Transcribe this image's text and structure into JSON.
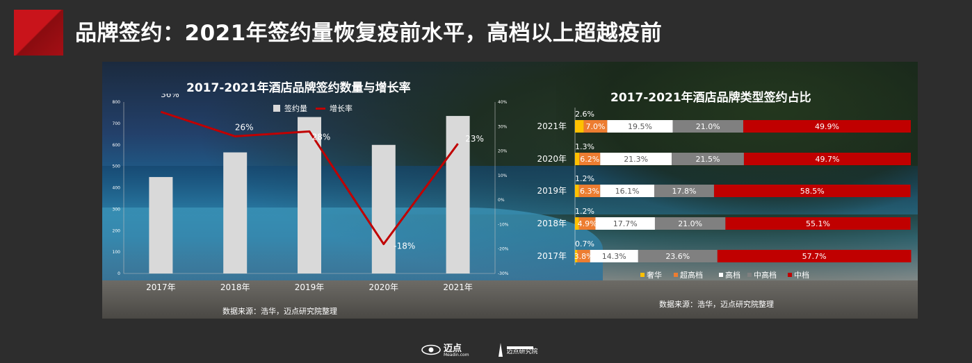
{
  "header": {
    "title": "品牌签约：2021年签约量恢复疫前水平，高档以上超越疫前"
  },
  "colors": {
    "accent_red": "#c9141b",
    "bar_gray": "#d9d9d9",
    "line_red": "#c00000",
    "luxury": "#ffc000",
    "upper_upscale": "#ed7d31",
    "upscale": "#ffffff",
    "upper_midscale": "#808080",
    "midscale": "#c00000"
  },
  "chart_data": [
    {
      "type": "bar",
      "title": "2017-2021年酒店品牌签约数量与增长率",
      "categories": [
        "2017年",
        "2018年",
        "2019年",
        "2020年",
        "2021年"
      ],
      "series": [
        {
          "name": "签约量",
          "type": "bar",
          "axis": "left",
          "values": [
            450,
            565,
            730,
            600,
            735
          ]
        },
        {
          "name": "增长率",
          "type": "line",
          "axis": "right",
          "values": [
            36,
            26,
            28,
            -18,
            23
          ]
        }
      ],
      "data_labels": [
        "36%",
        "26%",
        "28%",
        "-18%",
        "23%"
      ],
      "left_axis": {
        "ylim": [
          0,
          800
        ],
        "ticks": [
          "0",
          "100",
          "200",
          "300",
          "400",
          "500",
          "600",
          "700",
          "800"
        ]
      },
      "right_axis": {
        "ylim": [
          -30,
          40
        ],
        "ticks": [
          "-30%",
          "-20%",
          "-10%",
          "0%",
          "10%",
          "20%",
          "30%",
          "40%"
        ]
      },
      "legend": [
        "签约量",
        "增长率"
      ],
      "legend_position": "top",
      "source": "数据来源：浩华，迈点研究院整理"
    },
    {
      "type": "bar",
      "orientation": "horizontal-stacked-100",
      "title": "2017-2021年酒店品牌类型签约占比",
      "categories": [
        "2021年",
        "2020年",
        "2019年",
        "2018年",
        "2017年"
      ],
      "series": [
        {
          "name": "奢华",
          "values": [
            2.6,
            1.3,
            1.2,
            1.2,
            0.7
          ],
          "labels": [
            "2.6%",
            "1.3%",
            "1.2%",
            "1.2%",
            "0.7%"
          ]
        },
        {
          "name": "超高档",
          "values": [
            7.0,
            6.2,
            6.3,
            4.9,
            3.8
          ],
          "labels": [
            "7.0%",
            "6.2%",
            "6.3%",
            "4.9%",
            "3.8%"
          ]
        },
        {
          "name": "高档",
          "values": [
            19.5,
            21.3,
            16.1,
            17.7,
            14.3
          ],
          "labels": [
            "19.5%",
            "21.3%",
            "16.1%",
            "17.7%",
            "14.3%"
          ]
        },
        {
          "name": "中高档",
          "values": [
            21.0,
            21.5,
            17.8,
            21.0,
            23.6
          ],
          "labels": [
            "21.0%",
            "21.5%",
            "17.8%",
            "21.0%",
            "23.6%"
          ]
        },
        {
          "name": "中档",
          "values": [
            49.9,
            49.7,
            58.5,
            55.1,
            57.7
          ],
          "labels": [
            "49.9%",
            "49.7%",
            "58.5%",
            "55.1%",
            "57.7%"
          ]
        }
      ],
      "legend_position": "bottom",
      "source": "数据来源：浩华，迈点研究院整理"
    }
  ],
  "footer": {
    "brand": "迈点",
    "brand_sub": "Meadin.com",
    "institute": "迈点研究院"
  }
}
